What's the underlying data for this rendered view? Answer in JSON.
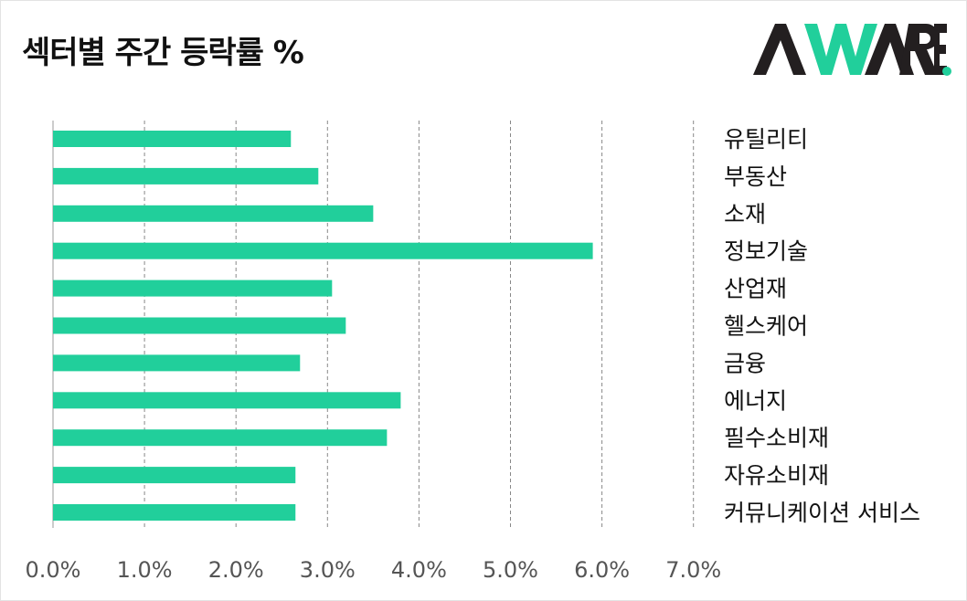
{
  "title": "섹터별 주간 등락률 %",
  "logo": {
    "text": "AWARE",
    "dark_color": "#231f20",
    "accent_color": "#21cf9b"
  },
  "colors": {
    "bar": "#21cf9b",
    "grid": "#888888",
    "axis": "#999999",
    "tick_text": "#555555",
    "label_text": "#111111"
  },
  "chart_data": {
    "type": "bar",
    "orientation": "horizontal",
    "title": "섹터별 주간 등락률 %",
    "xlabel": "",
    "ylabel": "",
    "categories": [
      "유틸리티",
      "부동산",
      "소재",
      "정보기술",
      "산업재",
      "헬스케어",
      "금융",
      "에너지",
      "필수소비재",
      "자유소비재",
      "커뮤니케이션 서비스"
    ],
    "values": [
      2.6,
      2.9,
      3.5,
      5.9,
      3.05,
      3.2,
      2.7,
      3.8,
      3.65,
      2.65,
      2.65
    ],
    "xlim": [
      0,
      7
    ],
    "xticks": [
      0,
      1,
      2,
      3,
      4,
      5,
      6,
      7
    ],
    "xtick_labels": [
      "0.0%",
      "1.0%",
      "2.0%",
      "3.0%",
      "4.0%",
      "5.0%",
      "6.0%",
      "7.0%"
    ],
    "grid": "vertical-dashed",
    "legend": "none",
    "category_labels_position": "right"
  }
}
